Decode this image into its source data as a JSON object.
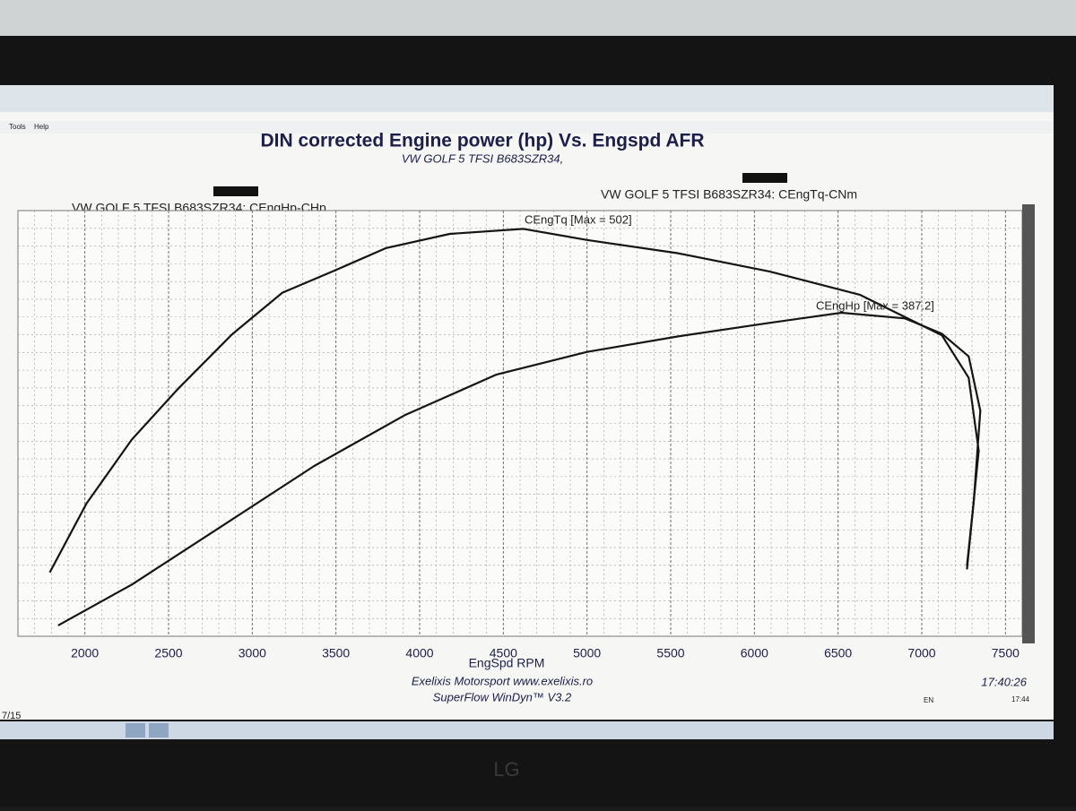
{
  "menu": [
    "Tools",
    "Help"
  ],
  "chart_data": {
    "type": "line",
    "title": "DIN corrected Engine power (hp) Vs. Engspd AFR",
    "subtitle": "VW GOLF 5 TFSI B683SZR34,",
    "x_label": "EngSpd RPM",
    "xlim": [
      1600,
      7600
    ],
    "xticks": [
      2000,
      2500,
      3000,
      3500,
      4000,
      4500,
      5000,
      5500,
      6000,
      6500,
      7000,
      7500
    ],
    "ylim": [
      100,
      520
    ],
    "y2lim": [
      30,
      500
    ],
    "grid": true,
    "series": [
      {
        "name": "VW GOLF 5 TFSI B683SZR34: CEngHp-CHp",
        "color": "#151515",
        "axis": "y2",
        "x": [
          1840,
          2280,
          2830,
          3370,
          3910,
          4460,
          5000,
          5540,
          6090,
          6520,
          6900,
          7120,
          7280,
          7350,
          7310,
          7270
        ],
        "values": [
          42,
          87,
          153,
          218,
          274,
          319,
          344,
          361,
          376,
          387.2,
          381,
          364,
          339,
          279,
          178,
          108
        ]
      },
      {
        "name": "VW GOLF 5 TFSI B683SZR34: CEngTq-CNm",
        "color": "#151515",
        "x": [
          1790,
          2010,
          2280,
          2550,
          2880,
          3180,
          3480,
          3800,
          4180,
          4620,
          5000,
          5540,
          6090,
          6630,
          7120,
          7280,
          7340,
          7270
        ],
        "values": [
          163,
          231,
          294,
          343,
          398,
          439,
          460,
          483,
          497,
          502,
          491,
          478,
          460,
          437,
          397,
          355,
          283,
          166
        ]
      }
    ],
    "annotations": [
      "CEngTq [Max = 502]",
      "CEngHp [Max = 387.2]"
    ]
  },
  "footer": {
    "company": "Exelixis Motorsport www.exelixis.ro",
    "software": "SuperFlow WinDyn™ V3.2",
    "time": "17:40:26"
  },
  "taskbar": {
    "date": "7/15",
    "language": "EN",
    "clock": "17:44"
  }
}
